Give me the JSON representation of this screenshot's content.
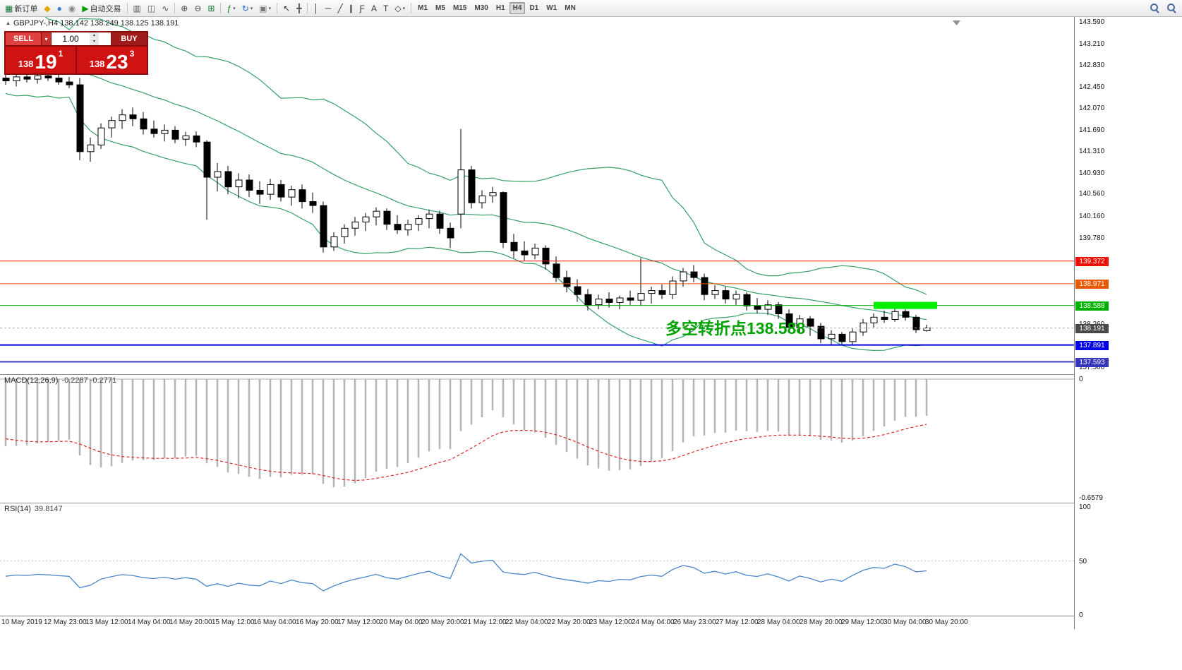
{
  "toolbar": {
    "items": [
      {
        "name": "new-order-button",
        "glyph": "▦",
        "color": "#1a7a3a",
        "label": "新订单"
      },
      {
        "name": "mql5-button",
        "glyph": "◆",
        "color": "#e8a400"
      },
      {
        "name": "profile-button",
        "glyph": "●",
        "color": "#3a7bd5"
      },
      {
        "name": "news-button",
        "glyph": "◉",
        "color": "#888888"
      },
      {
        "name": "autotrade-button",
        "glyph": "▶",
        "color": "#00a000",
        "label": "自动交易"
      },
      {
        "sep": true
      },
      {
        "name": "bar-chart-button",
        "glyph": "▥",
        "color": "#555555"
      },
      {
        "name": "candlestick-chart-button",
        "glyph": "◫",
        "color": "#555555"
      },
      {
        "name": "line-chart-button",
        "glyph": "∿",
        "color": "#555555"
      },
      {
        "sep": true
      },
      {
        "name": "zoom-in-button",
        "glyph": "⊕",
        "color": "#444444"
      },
      {
        "name": "zoom-out-button",
        "glyph": "⊖",
        "color": "#444444"
      },
      {
        "name": "tile-windows-button",
        "glyph": "⊞",
        "color": "#1a7a3a"
      },
      {
        "sep": true
      },
      {
        "name": "indicators-button",
        "glyph": "ƒ",
        "color": "#0a8a0a",
        "caret": true
      },
      {
        "name": "periods-button",
        "glyph": "↻",
        "color": "#2a6ac0",
        "caret": true
      },
      {
        "name": "templates-button",
        "glyph": "▣",
        "color": "#777777",
        "caret": true
      },
      {
        "sep": true
      },
      {
        "name": "cursor-button",
        "glyph": "↖",
        "color": "#333333"
      },
      {
        "name": "crosshair-button",
        "glyph": "╋",
        "color": "#555555"
      },
      {
        "sep": true
      },
      {
        "name": "vertical-line-button",
        "glyph": "│",
        "color": "#333333"
      },
      {
        "name": "horizontal-line-button",
        "glyph": "─",
        "color": "#333333"
      },
      {
        "name": "trendline-button",
        "glyph": "╱",
        "color": "#333333"
      },
      {
        "name": "channel-button",
        "glyph": "∥",
        "color": "#333333"
      },
      {
        "name": "fibonacci-button",
        "glyph": "Ƒ",
        "color": "#333333"
      },
      {
        "name": "text-button",
        "glyph": "A",
        "color": "#333333"
      },
      {
        "name": "label-button",
        "glyph": "T",
        "color": "#333333"
      },
      {
        "name": "shapes-button",
        "glyph": "◇",
        "color": "#333333",
        "caret": true
      },
      {
        "sep": true
      },
      {
        "tf": "M1"
      },
      {
        "tf": "M5"
      },
      {
        "tf": "M15"
      },
      {
        "tf": "M30"
      },
      {
        "tf": "H1"
      },
      {
        "tf": "H4",
        "active": true
      },
      {
        "tf": "D1"
      },
      {
        "tf": "W1"
      },
      {
        "tf": "MN"
      },
      {
        "spacer": true
      },
      {
        "name": "symbol-search-button",
        "shape": "magnifier"
      },
      {
        "name": "chart-search-button",
        "shape": "magnifier"
      }
    ]
  },
  "chart": {
    "symbol_line": "GBPJPY-,H4  138.142 138.249 138.125 138.191",
    "annotation": "多空转折点138.588"
  },
  "trade_panel": {
    "sell_label": "SELL",
    "buy_label": "BUY",
    "volume": "1.00",
    "bid": {
      "main": "138",
      "big": "19",
      "sup": "1"
    },
    "ask": {
      "main": "138",
      "big": "23",
      "sup": "3"
    }
  },
  "chart_data": {
    "type": "candlestick",
    "symbol": "GBPJPY-",
    "timeframe": "H4",
    "ohlc_display": {
      "open": "138.142",
      "high": "138.249",
      "low": "138.125",
      "close": "138.191"
    },
    "price_axis": {
      "max": 143.59,
      "min": 137.5,
      "ticks": [
        "143.590",
        "143.210",
        "142.830",
        "142.450",
        "142.070",
        "141.690",
        "141.310",
        "140.930",
        "140.560",
        "140.160",
        "139.780",
        "138.260",
        "137.500"
      ]
    },
    "hlines": [
      {
        "label": "139.372",
        "price": 139.372,
        "color": "#f01000",
        "width": 1
      },
      {
        "label": "138.971",
        "price": 138.971,
        "color": "#e85800",
        "width": 1
      },
      {
        "label": "138.588",
        "price": 138.588,
        "color": "#00b000",
        "width": 1
      },
      {
        "label": "137.891",
        "price": 137.891,
        "color": "#0000e8",
        "width": 2
      },
      {
        "label": "137.593",
        "price": 137.593,
        "color": "#3434bc",
        "width": 2
      }
    ],
    "current_price": {
      "label": "138.191",
      "price": 138.191,
      "bg": "#484848",
      "line_color": "#b0b0b0"
    },
    "highlight_zone": {
      "price": 138.588,
      "start_index": 82,
      "end_index": 88,
      "color": "#00ee00"
    },
    "indicator_seed": [
      144.3,
      143.9,
      144.1,
      143.6,
      143.85,
      143.4,
      143.7,
      143.2,
      143.55,
      143.05,
      143.35,
      142.95,
      143.2,
      142.85,
      143.1,
      142.75,
      143.0,
      142.7,
      142.85,
      142.6
    ],
    "candles": [
      [
        142.6,
        142.7,
        142.48,
        142.55
      ],
      [
        142.55,
        142.66,
        142.45,
        142.62
      ],
      [
        142.62,
        142.72,
        142.52,
        142.58
      ],
      [
        142.58,
        142.68,
        142.5,
        142.64
      ],
      [
        142.64,
        142.73,
        142.55,
        142.6
      ],
      [
        142.6,
        142.7,
        142.48,
        142.53
      ],
      [
        142.53,
        142.62,
        142.42,
        142.48
      ],
      [
        142.48,
        142.6,
        141.15,
        141.3
      ],
      [
        141.3,
        141.55,
        141.12,
        141.42
      ],
      [
        141.42,
        141.8,
        141.35,
        141.72
      ],
      [
        141.72,
        141.92,
        141.55,
        141.85
      ],
      [
        141.85,
        142.05,
        141.7,
        141.95
      ],
      [
        141.95,
        142.08,
        141.75,
        141.88
      ],
      [
        141.88,
        142.0,
        141.6,
        141.7
      ],
      [
        141.7,
        141.85,
        141.55,
        141.62
      ],
      [
        141.62,
        141.78,
        141.48,
        141.68
      ],
      [
        141.68,
        141.75,
        141.45,
        141.52
      ],
      [
        141.52,
        141.65,
        141.4,
        141.58
      ],
      [
        141.58,
        141.66,
        141.38,
        141.47
      ],
      [
        141.47,
        141.5,
        140.1,
        140.85
      ],
      [
        140.85,
        141.1,
        140.6,
        140.95
      ],
      [
        140.95,
        141.05,
        140.55,
        140.68
      ],
      [
        140.68,
        140.92,
        140.48,
        140.8
      ],
      [
        140.8,
        140.9,
        140.5,
        140.62
      ],
      [
        140.62,
        140.78,
        140.38,
        140.55
      ],
      [
        140.55,
        140.82,
        140.45,
        140.72
      ],
      [
        140.72,
        140.8,
        140.42,
        140.5
      ],
      [
        140.5,
        140.7,
        140.35,
        140.63
      ],
      [
        140.63,
        140.72,
        140.3,
        140.42
      ],
      [
        140.42,
        140.58,
        140.22,
        140.35
      ],
      [
        140.35,
        140.42,
        139.52,
        139.62
      ],
      [
        139.62,
        139.88,
        139.55,
        139.8
      ],
      [
        139.8,
        140.02,
        139.68,
        139.95
      ],
      [
        139.95,
        140.15,
        139.82,
        140.06
      ],
      [
        140.06,
        140.22,
        139.9,
        140.15
      ],
      [
        140.15,
        140.32,
        140.0,
        140.25
      ],
      [
        140.25,
        140.3,
        139.92,
        140.02
      ],
      [
        140.02,
        140.18,
        139.85,
        139.92
      ],
      [
        139.92,
        140.1,
        139.82,
        140.02
      ],
      [
        140.02,
        140.18,
        139.9,
        140.12
      ],
      [
        140.12,
        140.28,
        139.95,
        140.2
      ],
      [
        140.2,
        140.26,
        139.85,
        139.95
      ],
      [
        139.95,
        140.05,
        139.6,
        139.78
      ],
      [
        140.2,
        141.7,
        139.95,
        140.98
      ],
      [
        140.98,
        141.05,
        140.3,
        140.4
      ],
      [
        140.4,
        140.62,
        140.3,
        140.52
      ],
      [
        140.52,
        140.68,
        140.4,
        140.58
      ],
      [
        140.58,
        140.6,
        139.6,
        139.7
      ],
      [
        139.7,
        139.85,
        139.42,
        139.55
      ],
      [
        139.55,
        139.72,
        139.38,
        139.48
      ],
      [
        139.48,
        139.68,
        139.4,
        139.6
      ],
      [
        139.6,
        139.65,
        139.22,
        139.32
      ],
      [
        139.32,
        139.45,
        139.0,
        139.08
      ],
      [
        139.08,
        139.2,
        138.82,
        138.92
      ],
      [
        138.92,
        139.05,
        138.65,
        138.78
      ],
      [
        138.78,
        138.88,
        138.5,
        138.6
      ],
      [
        138.6,
        138.78,
        138.52,
        138.7
      ],
      [
        138.7,
        138.82,
        138.55,
        138.64
      ],
      [
        138.64,
        138.76,
        138.52,
        138.72
      ],
      [
        138.72,
        138.85,
        138.6,
        138.68
      ],
      [
        138.68,
        139.42,
        138.58,
        138.8
      ],
      [
        138.8,
        138.92,
        138.62,
        138.85
      ],
      [
        138.85,
        138.96,
        138.7,
        138.78
      ],
      [
        138.78,
        139.1,
        138.7,
        139.02
      ],
      [
        139.02,
        139.25,
        138.92,
        139.18
      ],
      [
        139.18,
        139.3,
        139.0,
        139.08
      ],
      [
        139.08,
        139.15,
        138.68,
        138.78
      ],
      [
        138.78,
        138.95,
        138.7,
        138.85
      ],
      [
        138.85,
        138.92,
        138.62,
        138.7
      ],
      [
        138.7,
        138.85,
        138.6,
        138.78
      ],
      [
        138.78,
        138.82,
        138.5,
        138.58
      ],
      [
        138.58,
        138.72,
        138.45,
        138.52
      ],
      [
        138.52,
        138.68,
        138.42,
        138.6
      ],
      [
        138.6,
        138.65,
        138.35,
        138.44
      ],
      [
        138.44,
        138.52,
        138.12,
        138.2
      ],
      [
        138.2,
        138.42,
        138.1,
        138.35
      ],
      [
        138.35,
        138.4,
        138.05,
        138.22
      ],
      [
        138.22,
        138.28,
        137.92,
        138.0
      ],
      [
        138.0,
        138.15,
        137.88,
        138.08
      ],
      [
        138.08,
        138.12,
        137.88,
        137.95
      ],
      [
        137.95,
        138.18,
        137.9,
        138.12
      ],
      [
        138.12,
        138.35,
        138.05,
        138.28
      ],
      [
        138.28,
        138.45,
        138.2,
        138.38
      ],
      [
        138.38,
        138.5,
        138.28,
        138.34
      ],
      [
        138.34,
        138.55,
        138.3,
        138.48
      ],
      [
        138.48,
        138.52,
        138.32,
        138.38
      ],
      [
        138.38,
        138.42,
        138.1,
        138.16
      ],
      [
        138.142,
        138.249,
        138.125,
        138.191
      ]
    ],
    "time_labels": [
      "10 May 2019",
      "12 May 23:00",
      "13 May 12:00",
      "14 May 04:00",
      "14 May 20:00",
      "15 May 12:00",
      "16 May 04:00",
      "16 May 20:00",
      "17 May 12:00",
      "20 May 04:00",
      "20 May 20:00",
      "21 May 12:00",
      "22 May 04:00",
      "22 May 20:00",
      "23 May 12:00",
      "24 May 04:00",
      "26 May 23:00",
      "27 May 12:00",
      "28 May 04:00",
      "28 May 20:00",
      "29 May 12:00",
      "30 May 04:00",
      "30 May 20:00"
    ],
    "indicators": {
      "bollinger": {
        "period": 20,
        "deviation": 2,
        "color": "#33a066"
      },
      "macd": {
        "name": "MACD(12,26,9)",
        "values": "-0.2287 -0.2771",
        "scale_min": -0.6579,
        "scale_labels": [
          {
            "label": "0",
            "value": 0
          },
          {
            "label": "-0.6579",
            "value": -0.6579
          }
        ],
        "histogram_color": "#b4b4b4",
        "signal_color": "#e02020"
      },
      "rsi": {
        "name": "RSI(14)",
        "value": "39.8147",
        "line_color": "#4a86c8",
        "levels": [
          50
        ],
        "scale_labels": [
          {
            "label": "100",
            "value": 100
          },
          {
            "label": "50",
            "value": 50
          },
          {
            "label": "0",
            "value": 0
          }
        ]
      }
    }
  }
}
